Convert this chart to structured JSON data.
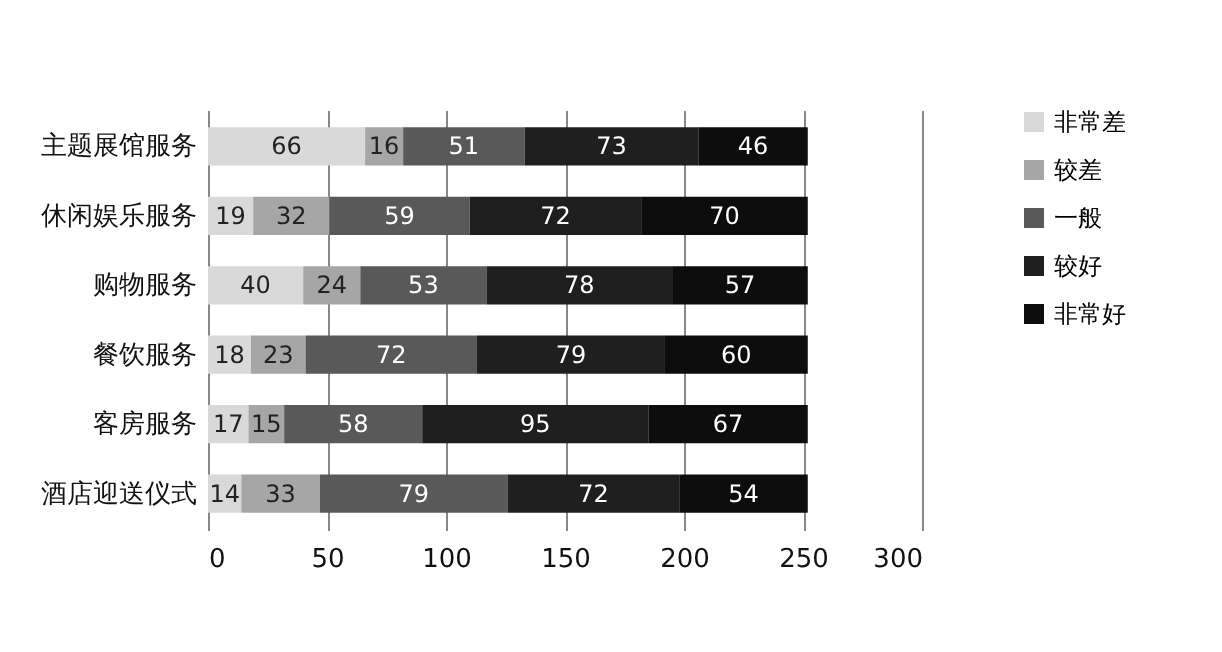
{
  "chart_data": {
    "type": "bar",
    "orientation": "horizontal",
    "stacked": true,
    "data_labels": true,
    "grid": "x",
    "legend": "right",
    "categories": [
      "主题展馆服务",
      "休闲娱乐服务",
      "购物服务",
      "餐饮服务",
      "客房服务",
      "酒店迎送仪式"
    ],
    "series": [
      {
        "name": "非常差",
        "color": "#d9d9d9",
        "values": [
          66,
          19,
          40,
          18,
          17,
          14
        ]
      },
      {
        "name": "较差",
        "color": "#a6a6a6",
        "values": [
          16,
          32,
          24,
          23,
          15,
          33
        ]
      },
      {
        "name": "一般",
        "color": "#595959",
        "values": [
          51,
          59,
          53,
          72,
          58,
          79
        ]
      },
      {
        "name": "较好",
        "color": "#1f1f1f",
        "values": [
          73,
          72,
          78,
          79,
          95,
          72
        ]
      },
      {
        "name": "非常好",
        "color": "#0d0d0d",
        "values": [
          46,
          70,
          57,
          60,
          67,
          54
        ]
      }
    ],
    "xlim": [
      0,
      300
    ],
    "xticks": [
      0,
      50,
      100,
      150,
      200,
      250,
      300
    ]
  }
}
